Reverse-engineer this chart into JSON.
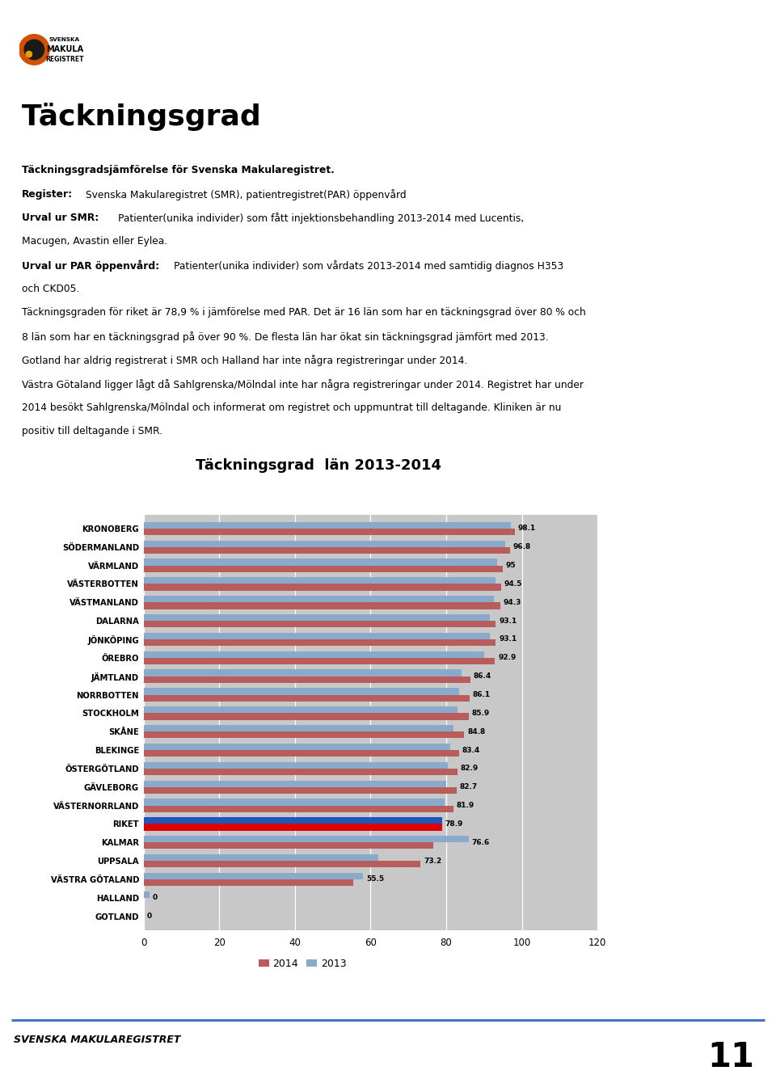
{
  "title": "Täckningsgrad  län 2013-2014",
  "categories": [
    "KRONOBERG",
    "SÖDERMANLAND",
    "VÄRMLAND",
    "VÄSTERBOTTEN",
    "VÄSTMANLAND",
    "DALARNA",
    "JÖNKÖPING",
    "ÖREBRO",
    "JÄMTLAND",
    "NORRBOTTEN",
    "STOCKHOLM",
    "SKÅNE",
    "BLEKINGE",
    "ÖSTERGÖTLAND",
    "GÄVLEBORG",
    "VÄSTERNORRLAND",
    "RIKET",
    "KALMAR",
    "UPPSALA",
    "VÄSTRA GÖTALAND",
    "HALLAND",
    "GOTLAND"
  ],
  "values_2014": [
    98.1,
    96.8,
    95.0,
    94.5,
    94.3,
    93.1,
    93.1,
    92.9,
    86.4,
    86.1,
    85.9,
    84.8,
    83.4,
    82.9,
    82.7,
    81.9,
    78.9,
    76.6,
    73.2,
    55.5,
    0,
    0
  ],
  "values_2013": [
    97.0,
    95.5,
    93.5,
    93.0,
    92.5,
    91.5,
    91.5,
    90.0,
    84.0,
    83.5,
    83.0,
    82.0,
    81.0,
    80.5,
    80.0,
    79.5,
    78.9,
    86.0,
    62.0,
    58.0,
    1.5,
    0
  ],
  "color_2014_normal": "#b85c5c",
  "color_2014_riket": "#dd0000",
  "color_2013_normal": "#8aaacc",
  "color_2013_riket": "#2255bb",
  "bg_chart": "#c8c8c8",
  "bg_page": "#ffffff",
  "xlim": [
    0,
    120
  ],
  "xticks": [
    0,
    20,
    40,
    60,
    80,
    100,
    120
  ],
  "header_title": "Täckningsgrad",
  "footer_text": "SVENSKA MAKULAREGISTRET",
  "page_number": "11"
}
